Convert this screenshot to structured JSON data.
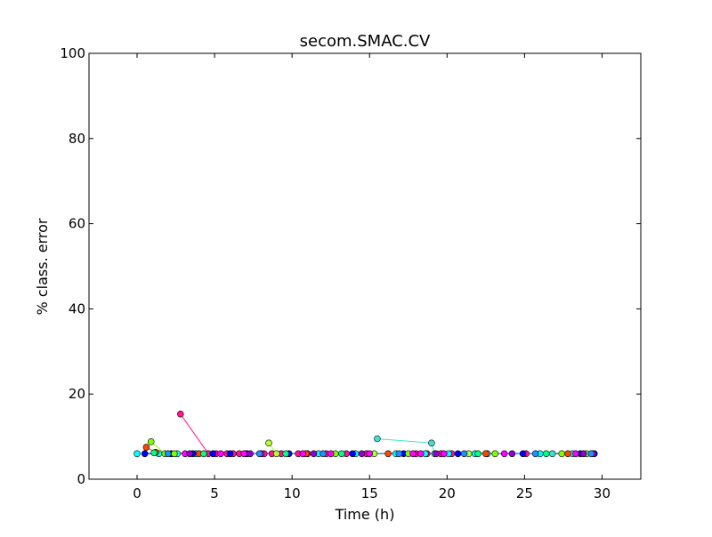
{
  "chart_data": {
    "type": "scatter",
    "title": "secom.SMAC.CV",
    "xlabel": "Time (h)",
    "ylabel": "% class. error",
    "xlim": [
      -3.1,
      32.5
    ],
    "ylim": [
      0,
      100
    ],
    "xticks": [
      0,
      5,
      10,
      15,
      20,
      25,
      30
    ],
    "yticks": [
      0,
      20,
      40,
      60,
      80,
      100
    ],
    "grid": false,
    "legend": "none",
    "palette": [
      "#00ffff",
      "#0000ff",
      "#ff00ff",
      "#ff1493",
      "#7fff00",
      "#00ff7f",
      "#ff4500",
      "#1e90ff",
      "#adff2f",
      "#40e0d0",
      "#ff69b4",
      "#9400d3"
    ],
    "series": [
      {
        "color": "#ff1493",
        "x": [
          2.8,
          4.6,
          5.1,
          5.8,
          6.2,
          6.6,
          7.0,
          8.2,
          8.7,
          9.3,
          10.4,
          11.0,
          12.2,
          13.5,
          14.8,
          18.0,
          18.7,
          19.6,
          20.3,
          25.1
        ],
        "y": [
          15.3,
          6.0,
          6.0,
          6.0,
          6.0,
          6.0,
          6.0,
          6.0,
          6.0,
          6.0,
          6.0,
          6.0,
          6.0,
          6.0,
          6.0,
          6.0,
          6.0,
          6.0,
          6.0,
          6.0
        ]
      },
      {
        "color": "#00ffff",
        "x": [
          0.0,
          1.4,
          2.6,
          3.8,
          11.7,
          14.1,
          16.7,
          18.6,
          20.1,
          21.8,
          26.0,
          28.1
        ],
        "y": [
          6.0,
          6.0,
          6.0,
          6.0,
          6.0,
          6.0,
          6.0,
          6.0,
          6.0,
          6.0,
          6.0,
          6.0
        ]
      },
      {
        "color": "#0000ff",
        "x": [
          0.5,
          2.2,
          3.6,
          4.9,
          6.0,
          7.1,
          9.8,
          13.9,
          17.2,
          20.7,
          24.9,
          28.6,
          29.5
        ],
        "y": [
          6.0,
          6.0,
          6.0,
          6.0,
          6.0,
          6.0,
          6.0,
          6.0,
          6.0,
          6.0,
          6.0,
          6.0,
          6.0
        ]
      },
      {
        "color": "#40e0d0",
        "x": [
          15.5,
          19.0,
          19.2,
          22.6,
          26.8
        ],
        "y": [
          9.5,
          8.5,
          6.0,
          6.0,
          6.0
        ]
      },
      {
        "color": "#7fff00",
        "x": [
          0.9,
          1.8,
          2.4,
          12.8,
          17.5,
          23.1,
          27.4,
          29.0
        ],
        "y": [
          8.8,
          6.0,
          6.0,
          6.0,
          6.0,
          6.0,
          6.0,
          6.0
        ]
      },
      {
        "color": "#adff2f",
        "x": [
          8.5,
          9.0,
          15.3,
          21.4
        ],
        "y": [
          8.5,
          6.0,
          6.0,
          6.0
        ]
      },
      {
        "color": "#ff4500",
        "x": [
          0.6,
          1.2,
          4.0,
          10.9,
          16.2,
          22.5,
          27.8
        ],
        "y": [
          7.5,
          6.3,
          6.0,
          6.0,
          6.0,
          6.0,
          6.0
        ]
      },
      {
        "color": "#ff00ff",
        "x": [
          3.1,
          5.4,
          6.9,
          8.0,
          10.7,
          12.5,
          15.0,
          17.8,
          18.3,
          19.8,
          23.7,
          28.3,
          29.4
        ],
        "y": [
          6.0,
          6.0,
          6.0,
          6.0,
          6.0,
          6.0,
          6.0,
          6.0,
          6.0,
          6.0,
          6.0,
          6.0,
          6.0
        ]
      },
      {
        "color": "#9400d3",
        "x": [
          3.4,
          7.3,
          11.4,
          14.5,
          19.3,
          24.2,
          28.8
        ],
        "y": [
          6.0,
          6.0,
          6.0,
          6.0,
          6.0,
          6.0,
          6.0
        ]
      },
      {
        "color": "#00ff7f",
        "x": [
          1.1,
          4.3,
          9.6,
          13.2,
          22.0,
          26.4
        ],
        "y": [
          6.2,
          6.0,
          6.0,
          6.0,
          6.0,
          6.0
        ]
      },
      {
        "color": "#1e90ff",
        "x": [
          2.0,
          7.9,
          12.0,
          16.9,
          21.1,
          25.7,
          29.3
        ],
        "y": [
          6.0,
          6.0,
          6.0,
          6.0,
          6.0,
          6.0,
          6.0
        ]
      }
    ]
  }
}
